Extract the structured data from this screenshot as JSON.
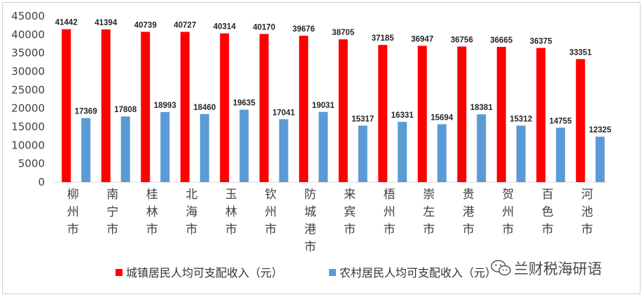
{
  "chart_data": {
    "type": "bar",
    "ylim": [
      0,
      45000
    ],
    "yticks": [
      0,
      5000,
      10000,
      15000,
      20000,
      25000,
      30000,
      35000,
      40000,
      45000
    ],
    "grid": false,
    "legend_position": "bottom",
    "categories": [
      "柳州市",
      "南宁市",
      "桂林市",
      "北海市",
      "玉林市",
      "钦州市",
      "防城港市",
      "来宾市",
      "梧州市",
      "崇左市",
      "贵港市",
      "贺州市",
      "百色市",
      "河池市"
    ],
    "series": [
      {
        "name": "城镇居民人均可支配收入（元）",
        "color": "#ff0000",
        "values": [
          41442,
          41394,
          40739,
          40727,
          40314,
          40170,
          39676,
          38705,
          37185,
          36947,
          36756,
          36665,
          36375,
          33351
        ]
      },
      {
        "name": "农村居民人均可支配收入（元）",
        "color": "#5b9bd5",
        "values": [
          17369,
          17808,
          18993,
          18460,
          19635,
          17041,
          19031,
          15317,
          16331,
          15694,
          18381,
          15312,
          14755,
          12325
        ]
      }
    ]
  },
  "watermark": {
    "text": "兰财税海研语",
    "icon": "wechat-icon"
  }
}
